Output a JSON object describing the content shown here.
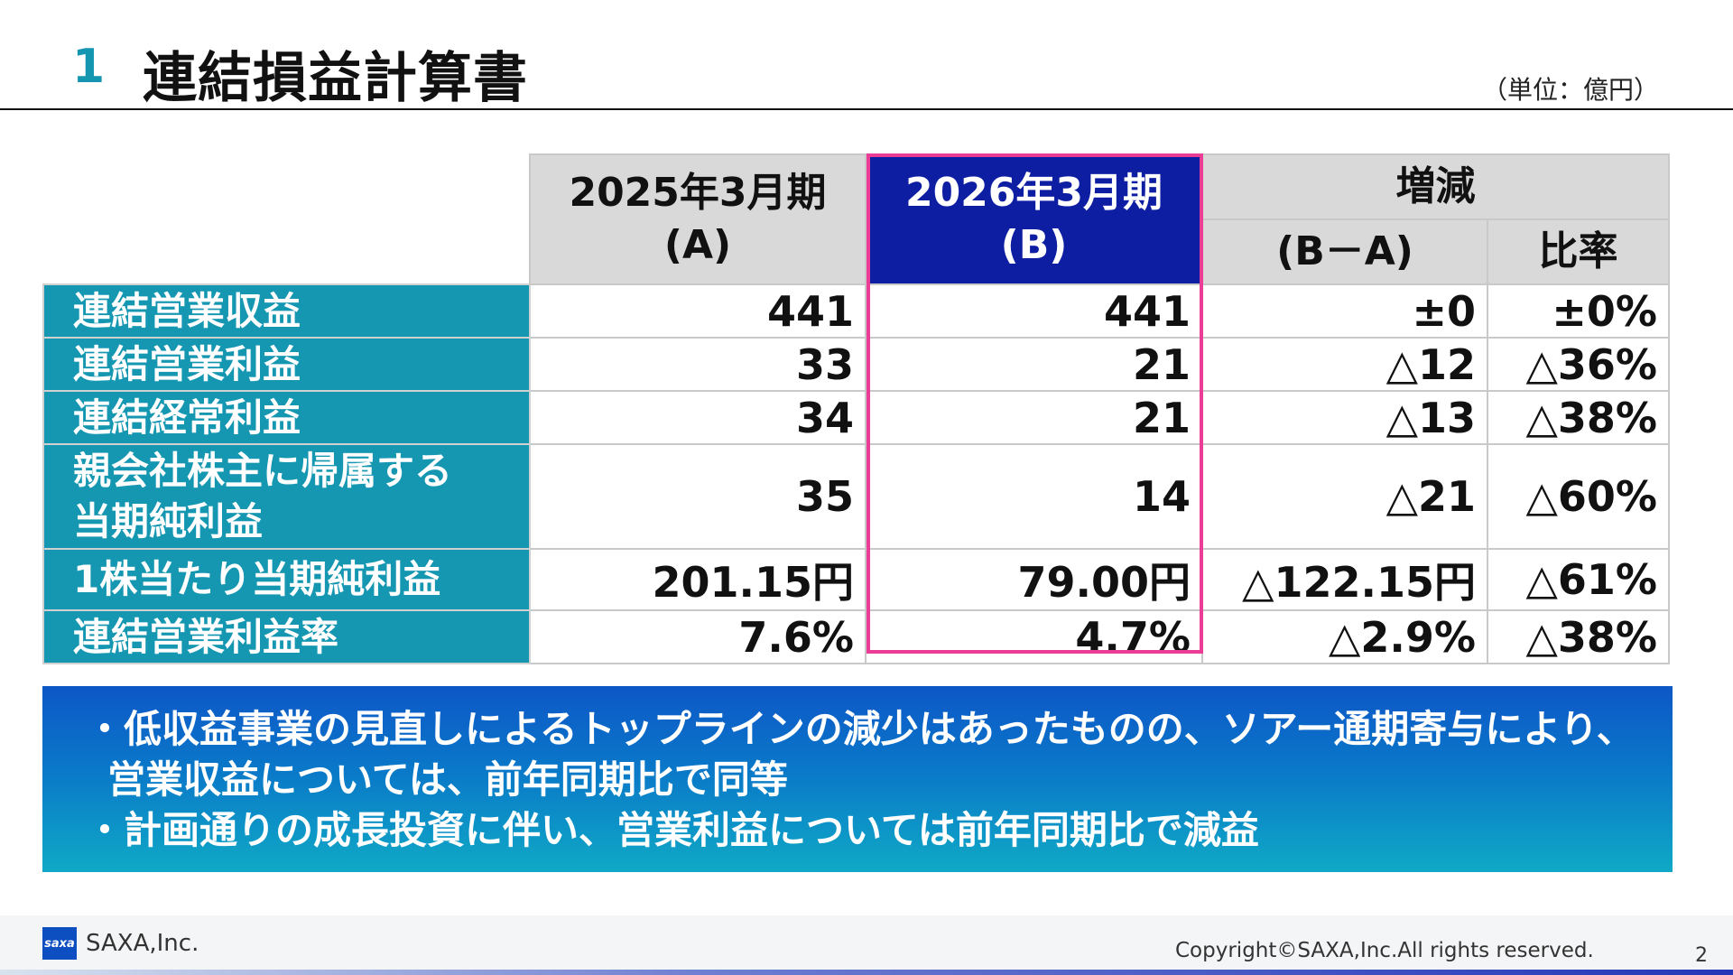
{
  "header": {
    "section_number": "1",
    "title": "連結損益計算書",
    "unit": "（単位：億円）"
  },
  "table": {
    "col_a_line1": "2025年3月期",
    "col_a_line2": "(A)",
    "col_b_line1": "2026年3月期",
    "col_b_line2": "(B)",
    "change_header": "増減",
    "diff_header": "(B－A)",
    "ratio_header": "比率",
    "rows": [
      {
        "label": "連結営業収益",
        "label2": "",
        "a": "441",
        "b": "441",
        "diff": "±0",
        "ratio": "±0%"
      },
      {
        "label": "連結営業利益",
        "label2": "",
        "a": "33",
        "b": "21",
        "diff": "△12",
        "ratio": "△36%"
      },
      {
        "label": "連結経常利益",
        "label2": "",
        "a": "34",
        "b": "21",
        "diff": "△13",
        "ratio": "△38%"
      },
      {
        "label": "親会社株主に帰属する",
        "label2": "当期純利益",
        "a": "35",
        "b": "14",
        "diff": "△21",
        "ratio": "△60%"
      },
      {
        "label": "1株当たり当期純利益",
        "label2": "",
        "a": "201.15円",
        "b": "79.00円",
        "diff": "△122.15円",
        "ratio": "△61%"
      },
      {
        "label": "連結営業利益率",
        "label2": "",
        "a": "7.6%",
        "b": "4.7%",
        "diff": "△2.9%",
        "ratio": "△38%"
      }
    ]
  },
  "summary": {
    "line1": "・低収益事業の見直しによるトップラインの減少はあったものの、ソアー通期寄与により、",
    "line2": "営業収益については、前年同期比で同等",
    "line3": "・計画通りの成長投資に伴い、営業利益については前年同期比で減益"
  },
  "footer": {
    "logo_text": "saxa",
    "company": "SAXA,Inc.",
    "copyright": "Copyright©SAXA,Inc.All rights reserved.",
    "page_number": "2"
  },
  "colors": {
    "accent_teal": "#1597b2",
    "highlight_navy": "#0e1ea3",
    "highlight_border": "#ec3d96"
  }
}
